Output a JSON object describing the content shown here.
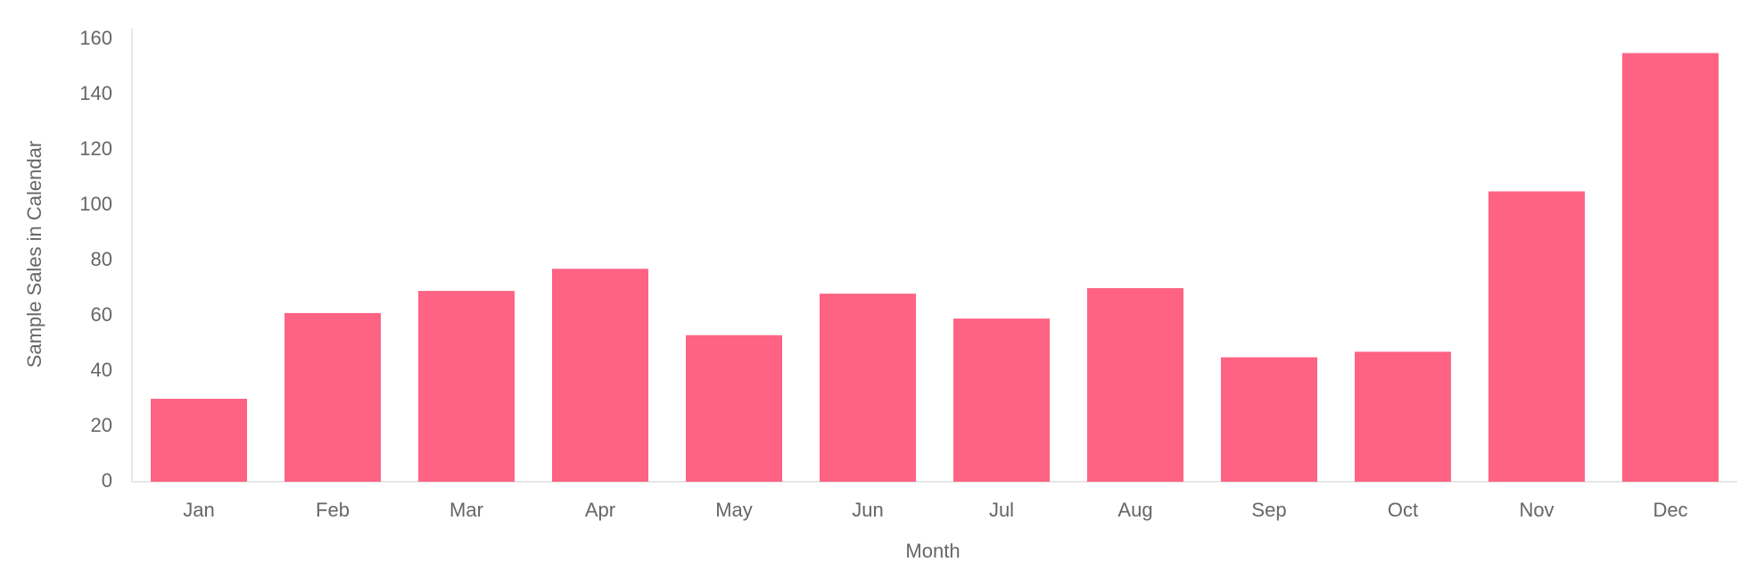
{
  "chart_data": {
    "type": "bar",
    "x_label": "Month",
    "y_label": "Sample Sales in Calendar",
    "categories": [
      "Jan",
      "Feb",
      "Mar",
      "Apr",
      "May",
      "Jun",
      "Jul",
      "Aug",
      "Sep",
      "Oct",
      "Nov",
      "Dec"
    ],
    "values": [
      30,
      61,
      69,
      77,
      53,
      68,
      59,
      70,
      45,
      47,
      105,
      155
    ],
    "color": "#ff6384",
    "ylim": [
      0,
      160
    ],
    "yticks": [
      0,
      20,
      40,
      60,
      80,
      100,
      120,
      140,
      160
    ],
    "grid": false
  }
}
